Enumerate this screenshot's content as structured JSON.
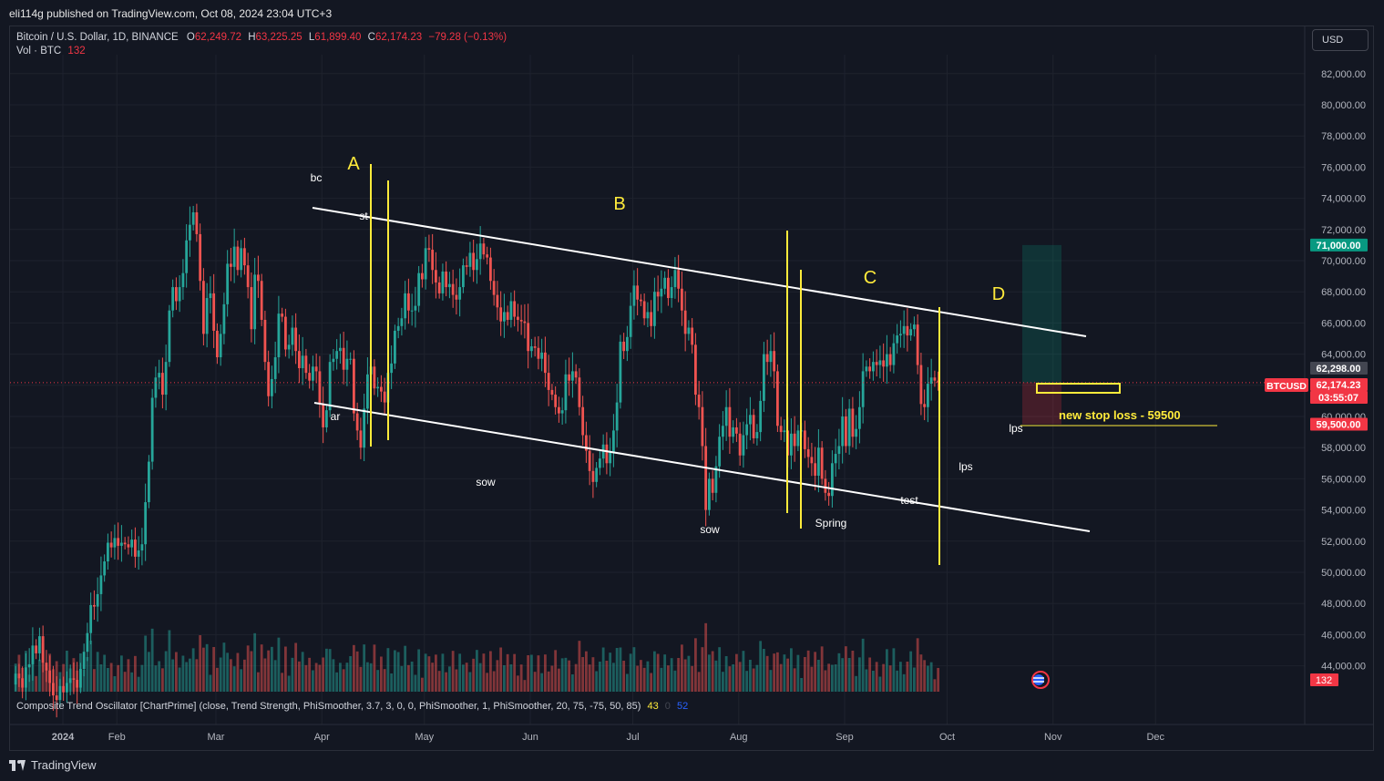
{
  "header": {
    "publish_text": "eli114g published on TradingView.com, Oct 08, 2024 23:04 UTC+3"
  },
  "legend": {
    "symbol": "Bitcoin / U.S. Dollar, 1D, BINANCE",
    "o_label": "O",
    "o_value": "62,249.72",
    "h_label": "H",
    "h_value": "63,225.25",
    "l_label": "L",
    "l_value": "61,899.40",
    "c_label": "C",
    "c_value": "62,174.23",
    "change": "−79.28 (−0.13%)",
    "vol_label": "Vol · BTC",
    "vol_value": "132"
  },
  "currency_button": "USD",
  "oscillator": {
    "label": "Composite Trend Oscillator [ChartPrime] (close, Trend Strength, PhiSmoother, 3.7, 3, 0, 0, PhiSmoother, 1, PhiSmoother, 20, 75, -75, 50, 85)",
    "v1": "43",
    "v2": "0",
    "v3": "52"
  },
  "footer": {
    "brand": "TradingView"
  },
  "colors": {
    "background": "#131722",
    "up": "#26a69a",
    "down": "#ef5350",
    "annotation_yellow": "#ffeb3b",
    "channel_line": "#ffffff",
    "target_label": "#089981",
    "stop_label": "#f23645"
  },
  "chart_data": {
    "type": "candlestick",
    "symbol": "BTCUSD",
    "ylim": [
      43000,
      83000
    ],
    "y_ticks": [
      "44,000.00",
      "46,000.00",
      "48,000.00",
      "50,000.00",
      "52,000.00",
      "54,000.00",
      "56,000.00",
      "58,000.00",
      "60,000.00",
      "62,000.00",
      "64,000.00",
      "66,000.00",
      "68,000.00",
      "70,000.00",
      "72,000.00",
      "74,000.00",
      "76,000.00",
      "78,000.00",
      "80,000.00",
      "82,000.00"
    ],
    "x_ticks": [
      "2024",
      "Feb",
      "Mar",
      "Apr",
      "May",
      "Jun",
      "Jul",
      "Aug",
      "Sep",
      "Oct",
      "Nov",
      "Dec"
    ],
    "price_closes": [
      42800,
      43500,
      43200,
      42600,
      43900,
      44100,
      45300,
      44800,
      45900,
      44200,
      43700,
      42900,
      42100,
      41800,
      42700,
      42300,
      42900,
      43200,
      43100,
      42600,
      43800,
      44900,
      46100,
      47900,
      47800,
      48600,
      49800,
      50700,
      51900,
      51600,
      52200,
      51700,
      51900,
      51800,
      51600,
      52100,
      51000,
      51400,
      51800,
      54500,
      57100,
      61200,
      62500,
      62800,
      61400,
      63500,
      66800,
      68300,
      67400,
      68300,
      69200,
      71300,
      72300,
      73100,
      71700,
      68700,
      65300,
      67600,
      67900,
      65500,
      63800,
      65300,
      67200,
      69800,
      69600,
      70900,
      69400,
      70800,
      69700,
      68300,
      65600,
      69100,
      68700,
      66200,
      63500,
      61300,
      62400,
      63800,
      66600,
      66400,
      64300,
      64600,
      65700,
      64200,
      63100,
      63900,
      62800,
      62300,
      63200,
      62900,
      60800,
      59300,
      60400,
      63500,
      63700,
      64200,
      64400,
      63000,
      63700,
      63700,
      60200,
      59100,
      58000,
      60500,
      62700,
      63200,
      61800,
      61900,
      61600,
      60900,
      62800,
      63400,
      65500,
      65800,
      66300,
      67900,
      66800,
      66800,
      67100,
      69200,
      68800,
      70800,
      70700,
      69400,
      68600,
      67900,
      69300,
      68300,
      68500,
      67800,
      67500,
      68300,
      69700,
      69600,
      70500,
      69400,
      70100,
      71100,
      70400,
      70200,
      68700,
      67800,
      67000,
      66100,
      66700,
      66200,
      67400,
      66400,
      66200,
      66100,
      66000,
      64200,
      64500,
      64400,
      63700,
      64100,
      62800,
      61700,
      61400,
      60600,
      60200,
      60400,
      62700,
      62300,
      62900,
      62500,
      60600,
      58800,
      57800,
      56500,
      55800,
      56700,
      57300,
      58200,
      57000,
      57700,
      59100,
      60900,
      64800,
      64200,
      65100,
      67100,
      68400,
      67500,
      67400,
      66300,
      66700,
      65800,
      68000,
      67700,
      68200,
      68900,
      67600,
      68300,
      69400,
      68200,
      66800,
      65300,
      65700,
      64600,
      61400,
      60600,
      58100,
      54000,
      56000,
      55100,
      56800,
      58700,
      59400,
      60600,
      58700,
      59300,
      58900,
      57500,
      58800,
      59500,
      60100,
      58600,
      59000,
      61000,
      64000,
      63500,
      64200,
      62900,
      59400,
      59000,
      59100,
      57500,
      58900,
      58100,
      59100,
      59100,
      57900,
      57400,
      57000,
      56200,
      58000,
      56000,
      55100,
      54900,
      57000,
      57600,
      58100,
      60000,
      58100,
      60500,
      58700,
      59200,
      60600,
      62900,
      63200,
      62900,
      63500,
      63300,
      63600,
      63200,
      64000,
      63300,
      64700,
      65200,
      65300,
      65800,
      65200,
      65600,
      65900,
      63300,
      60800,
      60600,
      62100,
      62500,
      62300,
      62174
    ],
    "volume_relative": "shown as bars at chart bottom",
    "annotations": {
      "waves": [
        "A",
        "B",
        "C",
        "D"
      ],
      "wyckoff_labels": [
        "bc",
        "st",
        "ar",
        "sow",
        "sow",
        "Spring",
        "test",
        "lps",
        "lps"
      ],
      "note": "new stop loss - 59500"
    },
    "price_labels": {
      "target": "71,000.00",
      "high": "62,298.00",
      "current_symbol": "BTCUSD",
      "current": "62,174.23",
      "countdown": "03:55:07",
      "stop": "59,500.00",
      "volume": "132"
    }
  }
}
